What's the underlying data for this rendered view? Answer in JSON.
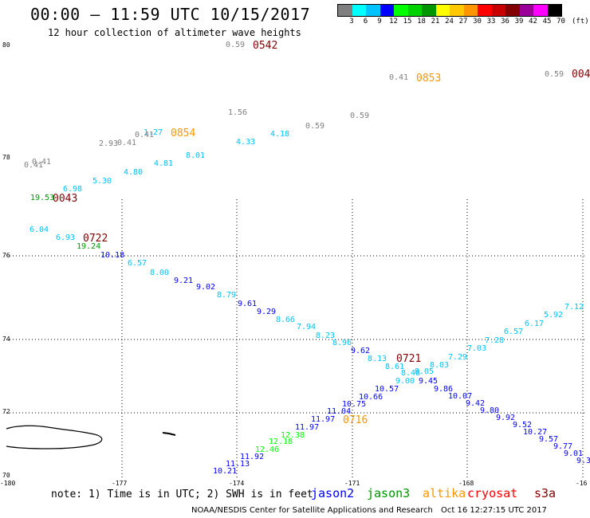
{
  "header": {
    "title": "00:00 — 11:59 UTC 10/15/2017",
    "subtitle": "12 hour collection of altimeter wave heights"
  },
  "colorbar": {
    "colors": [
      "#7f7f7f",
      "#00ffff",
      "#00c3ff",
      "#0000ff",
      "#00ff00",
      "#00d200",
      "#009600",
      "#ffff00",
      "#ffc800",
      "#ff9600",
      "#ff0000",
      "#c80000",
      "#820000",
      "#9b009b",
      "#ff00ff",
      "#000000"
    ],
    "ticks": [
      "3",
      "6",
      "9",
      "12",
      "15",
      "18",
      "21",
      "24",
      "27",
      "30",
      "33",
      "36",
      "39",
      "42",
      "45",
      "70"
    ],
    "unit": "(ft)"
  },
  "axes": {
    "lon_labels": [
      "-180",
      "-177",
      "-174",
      "-171",
      "-168",
      "-16"
    ],
    "lat_labels": [
      "80",
      "78",
      "76",
      "74",
      "72",
      "70"
    ]
  },
  "observations": [
    {
      "v": "0.59",
      "c": "#7f7f7f"
    },
    {
      "v": "0.41",
      "c": "#7f7f7f"
    },
    {
      "v": "0.59",
      "c": "#7f7f7f"
    },
    {
      "v": "1.56",
      "c": "#7f7f7f"
    },
    {
      "v": "0.59",
      "c": "#7f7f7f"
    },
    {
      "v": "0.59",
      "c": "#7f7f7f"
    },
    {
      "v": "4.18",
      "c": "#00c3ff"
    },
    {
      "v": "4.33",
      "c": "#00c3ff"
    },
    {
      "v": "1.27",
      "c": "#00c3ff"
    },
    {
      "v": "0.41",
      "c": "#7f7f7f"
    },
    {
      "v": "0.41",
      "c": "#7f7f7f"
    },
    {
      "v": "2.93",
      "c": "#7f7f7f"
    },
    {
      "v": "8.01",
      "c": "#00c3ff"
    },
    {
      "v": "4.81",
      "c": "#00c3ff"
    },
    {
      "v": "4.80",
      "c": "#00c3ff"
    },
    {
      "v": "0.41",
      "c": "#7f7f7f"
    },
    {
      "v": "0.41",
      "c": "#7f7f7f"
    },
    {
      "v": "5.30",
      "c": "#00c3ff"
    },
    {
      "v": "6.98",
      "c": "#00c3ff"
    },
    {
      "v": "19.53",
      "c": "#009600"
    },
    {
      "v": "6.04",
      "c": "#00c3ff"
    },
    {
      "v": "6.93",
      "c": "#00c3ff"
    },
    {
      "v": "19.24",
      "c": "#009600"
    },
    {
      "v": "10.18",
      "c": "#0000ff"
    },
    {
      "v": "6.57",
      "c": "#00c3ff"
    },
    {
      "v": "8.00",
      "c": "#00c3ff"
    },
    {
      "v": "9.21",
      "c": "#0000ff"
    },
    {
      "v": "9.02",
      "c": "#0000ff"
    },
    {
      "v": "8.79",
      "c": "#00c3ff"
    },
    {
      "v": "9.61",
      "c": "#0000ff"
    },
    {
      "v": "9.29",
      "c": "#0000ff"
    },
    {
      "v": "8.66",
      "c": "#00c3ff"
    },
    {
      "v": "7.94",
      "c": "#00c3ff"
    },
    {
      "v": "8.23",
      "c": "#00c3ff"
    },
    {
      "v": "8.96",
      "c": "#00c3ff"
    },
    {
      "v": "9.62",
      "c": "#0000ff"
    },
    {
      "v": "8.13",
      "c": "#00c3ff"
    },
    {
      "v": "8.61",
      "c": "#00c3ff"
    },
    {
      "v": "8.48",
      "c": "#00c3ff"
    },
    {
      "v": "8.05",
      "c": "#00c3ff"
    },
    {
      "v": "9.00",
      "c": "#00c3ff"
    },
    {
      "v": "9.45",
      "c": "#0000ff"
    },
    {
      "v": "8.03",
      "c": "#00c3ff"
    },
    {
      "v": "7.29",
      "c": "#00c3ff"
    },
    {
      "v": "7.03",
      "c": "#00c3ff"
    },
    {
      "v": "7.28",
      "c": "#00c3ff"
    },
    {
      "v": "6.57",
      "c": "#00c3ff"
    },
    {
      "v": "6.17",
      "c": "#00c3ff"
    },
    {
      "v": "5.92",
      "c": "#00c3ff"
    },
    {
      "v": "7.12",
      "c": "#00c3ff"
    },
    {
      "v": "9.86",
      "c": "#0000ff"
    },
    {
      "v": "10.07",
      "c": "#0000ff"
    },
    {
      "v": "9.42",
      "c": "#0000ff"
    },
    {
      "v": "9.80",
      "c": "#0000ff"
    },
    {
      "v": "9.92",
      "c": "#0000ff"
    },
    {
      "v": "9.52",
      "c": "#0000ff"
    },
    {
      "v": "10.27",
      "c": "#0000ff"
    },
    {
      "v": "9.57",
      "c": "#0000ff"
    },
    {
      "v": "9.77",
      "c": "#0000ff"
    },
    {
      "v": "9.01",
      "c": "#0000ff"
    },
    {
      "v": "9.3",
      "c": "#0000ff"
    },
    {
      "v": "10.57",
      "c": "#0000ff"
    },
    {
      "v": "10.66",
      "c": "#0000ff"
    },
    {
      "v": "10.75",
      "c": "#0000ff"
    },
    {
      "v": "11.04",
      "c": "#0000ff"
    },
    {
      "v": "11.97",
      "c": "#0000ff"
    },
    {
      "v": "11.97",
      "c": "#0000ff"
    },
    {
      "v": "12.38",
      "c": "#00ff00"
    },
    {
      "v": "12.18",
      "c": "#00ff00"
    },
    {
      "v": "12.46",
      "c": "#00ff00"
    },
    {
      "v": "11.92",
      "c": "#0000ff"
    },
    {
      "v": "11.13",
      "c": "#0000ff"
    },
    {
      "v": "10.21",
      "c": "#0000ff"
    }
  ],
  "times": [
    {
      "v": "0542",
      "c": "#820000"
    },
    {
      "v": "0853",
      "c": "#ff9600"
    },
    {
      "v": "004",
      "c": "#820000"
    },
    {
      "v": "0854",
      "c": "#ff9600"
    },
    {
      "v": "0043",
      "c": "#820000"
    },
    {
      "v": "0722",
      "c": "#820000"
    },
    {
      "v": "0721",
      "c": "#820000"
    },
    {
      "v": "0716",
      "c": "#ff9600"
    }
  ],
  "footer": {
    "note": "note: 1) Time is in UTC; 2) SWH is in feet",
    "legend": [
      {
        "label": "jason2",
        "color": "#0000ff"
      },
      {
        "label": "jason3",
        "color": "#009600"
      },
      {
        "label": "altika",
        "color": "#ff9600"
      },
      {
        "label": "cryosat",
        "color": "#ff0000"
      },
      {
        "label": "s3a",
        "color": "#820000"
      }
    ],
    "credit": "NOAA/NESDIS Center for Satellite Applications and Research",
    "timestamp": "Oct 16 12:27:15 UTC 2017"
  }
}
